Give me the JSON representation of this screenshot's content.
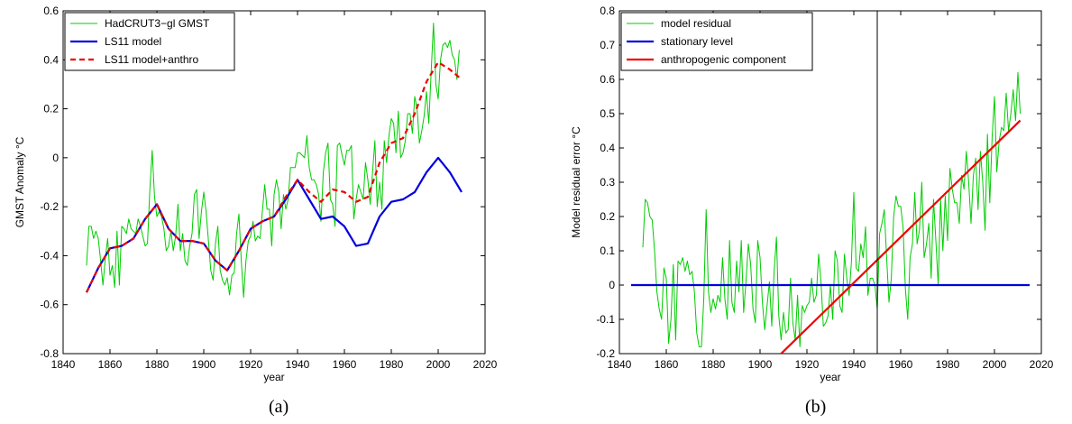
{
  "chart_data": [
    {
      "type": "line",
      "title": "",
      "xlabel": "year",
      "ylabel": "GMST Anomaly °C",
      "xlim": [
        1840,
        2020
      ],
      "ylim": [
        -0.8,
        0.6
      ],
      "xticks": [
        1840,
        1860,
        1880,
        1900,
        1920,
        1940,
        1960,
        1980,
        2000,
        2020
      ],
      "yticks": [
        -0.8,
        -0.6,
        -0.4,
        -0.2,
        0,
        0.2,
        0.4,
        0.6
      ],
      "grid": false,
      "legend_placement": "top-left",
      "series": [
        {
          "name": "HadCRUT3−gl GMST",
          "color": "#00cc00",
          "style": "solid",
          "x": [
            1850,
            1851,
            1852,
            1853,
            1854,
            1855,
            1856,
            1857,
            1858,
            1859,
            1860,
            1861,
            1862,
            1863,
            1864,
            1865,
            1866,
            1867,
            1868,
            1869,
            1870,
            1871,
            1872,
            1873,
            1874,
            1875,
            1876,
            1877,
            1878,
            1879,
            1880,
            1881,
            1882,
            1883,
            1884,
            1885,
            1886,
            1887,
            1888,
            1889,
            1890,
            1891,
            1892,
            1893,
            1894,
            1895,
            1896,
            1897,
            1898,
            1899,
            1900,
            1901,
            1902,
            1903,
            1904,
            1905,
            1906,
            1907,
            1908,
            1909,
            1910,
            1911,
            1912,
            1913,
            1914,
            1915,
            1916,
            1917,
            1918,
            1919,
            1920,
            1921,
            1922,
            1923,
            1924,
            1925,
            1926,
            1927,
            1928,
            1929,
            1930,
            1931,
            1932,
            1933,
            1934,
            1935,
            1936,
            1937,
            1938,
            1939,
            1940,
            1941,
            1942,
            1943,
            1944,
            1945,
            1946,
            1947,
            1948,
            1949,
            1950,
            1951,
            1952,
            1953,
            1954,
            1955,
            1956,
            1957,
            1958,
            1959,
            1960,
            1961,
            1962,
            1963,
            1964,
            1965,
            1966,
            1967,
            1968,
            1969,
            1970,
            1971,
            1972,
            1973,
            1974,
            1975,
            1976,
            1977,
            1978,
            1979,
            1980,
            1981,
            1982,
            1983,
            1984,
            1985,
            1986,
            1987,
            1988,
            1989,
            1990,
            1991,
            1992,
            1993,
            1994,
            1995,
            1996,
            1997,
            1998,
            1999,
            2000,
            2001,
            2002,
            2003,
            2004,
            2005,
            2006,
            2007,
            2008,
            2009
          ],
          "values": [
            -0.44,
            -0.28,
            -0.28,
            -0.33,
            -0.3,
            -0.33,
            -0.42,
            -0.52,
            -0.41,
            -0.33,
            -0.48,
            -0.44,
            -0.53,
            -0.3,
            -0.52,
            -0.28,
            -0.29,
            -0.31,
            -0.25,
            -0.29,
            -0.3,
            -0.31,
            -0.25,
            -0.28,
            -0.32,
            -0.36,
            -0.35,
            -0.13,
            0.03,
            -0.16,
            -0.24,
            -0.22,
            -0.24,
            -0.29,
            -0.38,
            -0.36,
            -0.3,
            -0.38,
            -0.32,
            -0.19,
            -0.38,
            -0.31,
            -0.42,
            -0.44,
            -0.36,
            -0.31,
            -0.15,
            -0.13,
            -0.33,
            -0.22,
            -0.14,
            -0.22,
            -0.34,
            -0.46,
            -0.5,
            -0.35,
            -0.28,
            -0.46,
            -0.5,
            -0.52,
            -0.49,
            -0.56,
            -0.48,
            -0.47,
            -0.31,
            -0.23,
            -0.42,
            -0.57,
            -0.42,
            -0.34,
            -0.32,
            -0.26,
            -0.34,
            -0.32,
            -0.33,
            -0.22,
            -0.11,
            -0.21,
            -0.21,
            -0.36,
            -0.15,
            -0.09,
            -0.14,
            -0.29,
            -0.15,
            -0.21,
            -0.17,
            -0.04,
            -0.04,
            -0.04,
            0.02,
            0.02,
            0.01,
            0.0,
            0.09,
            -0.04,
            -0.09,
            -0.09,
            -0.11,
            -0.15,
            -0.26,
            -0.06,
            0.02,
            0.06,
            -0.17,
            -0.19,
            -0.28,
            0.05,
            0.06,
            0.01,
            -0.03,
            0.03,
            0.03,
            0.05,
            -0.25,
            -0.17,
            -0.11,
            -0.14,
            -0.17,
            -0.02,
            -0.09,
            -0.19,
            -0.06,
            0.07,
            -0.2,
            -0.1,
            -0.21,
            0.07,
            -0.02,
            0.09,
            0.16,
            0.14,
            0.02,
            0.19,
            0.0,
            0.02,
            0.07,
            0.18,
            0.18,
            0.1,
            0.25,
            0.2,
            0.06,
            0.11,
            0.17,
            0.27,
            0.14,
            0.35,
            0.55,
            0.3,
            0.24,
            0.4,
            0.46,
            0.47,
            0.45,
            0.48,
            0.42,
            0.4,
            0.32,
            0.44
          ]
        },
        {
          "name": "LS11 model",
          "color": "#0000dd",
          "style": "solid",
          "x": [
            1850,
            1855,
            1860,
            1865,
            1870,
            1875,
            1880,
            1885,
            1890,
            1895,
            1900,
            1905,
            1910,
            1915,
            1920,
            1925,
            1930,
            1935,
            1940,
            1945,
            1950,
            1955,
            1960,
            1965,
            1970,
            1975,
            1980,
            1985,
            1990,
            1995,
            2000,
            2005,
            2010
          ],
          "values": [
            -0.55,
            -0.45,
            -0.37,
            -0.36,
            -0.33,
            -0.25,
            -0.19,
            -0.29,
            -0.34,
            -0.34,
            -0.35,
            -0.42,
            -0.46,
            -0.38,
            -0.29,
            -0.26,
            -0.24,
            -0.17,
            -0.09,
            -0.17,
            -0.25,
            -0.24,
            -0.28,
            -0.36,
            -0.35,
            -0.24,
            -0.18,
            -0.17,
            -0.14,
            -0.06,
            0.0,
            -0.06,
            -0.14
          ]
        },
        {
          "name": "LS11 model+anthro",
          "color": "#ee0000",
          "style": "dashed",
          "x": [
            1850,
            1855,
            1860,
            1865,
            1870,
            1875,
            1880,
            1885,
            1890,
            1895,
            1900,
            1905,
            1910,
            1915,
            1920,
            1925,
            1930,
            1935,
            1940,
            1945,
            1950,
            1955,
            1960,
            1965,
            1970,
            1975,
            1980,
            1985,
            1990,
            1995,
            2000,
            2005,
            2010
          ],
          "values": [
            -0.55,
            -0.45,
            -0.37,
            -0.36,
            -0.33,
            -0.25,
            -0.19,
            -0.29,
            -0.34,
            -0.34,
            -0.35,
            -0.42,
            -0.46,
            -0.38,
            -0.29,
            -0.26,
            -0.24,
            -0.16,
            -0.09,
            -0.14,
            -0.18,
            -0.13,
            -0.14,
            -0.18,
            -0.16,
            -0.02,
            0.06,
            0.08,
            0.18,
            0.31,
            0.39,
            0.36,
            0.32
          ]
        }
      ]
    },
    {
      "type": "line",
      "title": "",
      "xlabel": "year",
      "ylabel": "Model residual error °C",
      "xlim": [
        1840,
        2020
      ],
      "ylim": [
        -0.2,
        0.8
      ],
      "xticks": [
        1840,
        1860,
        1880,
        1900,
        1920,
        1940,
        1960,
        1980,
        2000,
        2020
      ],
      "yticks": [
        -0.2,
        -0.1,
        0,
        0.1,
        0.2,
        0.3,
        0.4,
        0.5,
        0.6,
        0.7,
        0.8
      ],
      "grid": false,
      "legend_placement": "top-left",
      "vline_x": 1950,
      "series": [
        {
          "name": "model residual",
          "color": "#00cc00",
          "style": "solid",
          "x": [
            1850,
            1851,
            1852,
            1853,
            1854,
            1855,
            1856,
            1857,
            1858,
            1859,
            1860,
            1861,
            1862,
            1863,
            1864,
            1865,
            1866,
            1867,
            1868,
            1869,
            1870,
            1871,
            1872,
            1873,
            1874,
            1875,
            1876,
            1877,
            1878,
            1879,
            1880,
            1881,
            1882,
            1883,
            1884,
            1885,
            1886,
            1887,
            1888,
            1889,
            1890,
            1891,
            1892,
            1893,
            1894,
            1895,
            1896,
            1897,
            1898,
            1899,
            1900,
            1901,
            1902,
            1903,
            1904,
            1905,
            1906,
            1907,
            1908,
            1909,
            1910,
            1911,
            1912,
            1913,
            1914,
            1915,
            1916,
            1917,
            1918,
            1919,
            1920,
            1921,
            1922,
            1923,
            1924,
            1925,
            1926,
            1927,
            1928,
            1929,
            1930,
            1931,
            1932,
            1933,
            1934,
            1935,
            1936,
            1937,
            1938,
            1939,
            1940,
            1941,
            1942,
            1943,
            1944,
            1945,
            1946,
            1947,
            1948,
            1949,
            1950,
            1951,
            1952,
            1953,
            1954,
            1955,
            1956,
            1957,
            1958,
            1959,
            1960,
            1961,
            1962,
            1963,
            1964,
            1965,
            1966,
            1967,
            1968,
            1969,
            1970,
            1971,
            1972,
            1973,
            1974,
            1975,
            1976,
            1977,
            1978,
            1979,
            1980,
            1981,
            1982,
            1983,
            1984,
            1985,
            1986,
            1987,
            1988,
            1989,
            1990,
            1991,
            1992,
            1993,
            1994,
            1995,
            1996,
            1997,
            1998,
            1999,
            2000,
            2001,
            2002,
            2003,
            2004,
            2005,
            2006,
            2007,
            2008,
            2009,
            2010,
            2011
          ],
          "values": [
            0.11,
            0.25,
            0.24,
            0.2,
            0.19,
            0.1,
            -0.02,
            -0.07,
            -0.1,
            0.05,
            0.02,
            -0.17,
            -0.1,
            0.06,
            -0.16,
            0.07,
            0.06,
            0.08,
            0.04,
            0.07,
            0.03,
            0.04,
            -0.02,
            -0.14,
            -0.18,
            -0.18,
            -0.04,
            0.22,
            -0.02,
            -0.08,
            -0.04,
            -0.07,
            -0.03,
            -0.05,
            0.08,
            -0.04,
            -0.1,
            0.13,
            -0.05,
            -0.08,
            0.07,
            -0.02,
            0.13,
            -0.08,
            0.01,
            0.12,
            0.06,
            -0.07,
            -0.11,
            0.13,
            0.08,
            -0.05,
            -0.13,
            -0.06,
            0.01,
            -0.12,
            0.04,
            0.14,
            -0.09,
            -0.16,
            -0.08,
            -0.14,
            -0.13,
            0.02,
            -0.11,
            -0.16,
            -0.03,
            -0.18,
            -0.06,
            -0.08,
            -0.06,
            -0.05,
            0.02,
            -0.05,
            -0.03,
            0.09,
            0.01,
            -0.12,
            -0.11,
            -0.09,
            0.0,
            -0.1,
            0.1,
            0.07,
            -0.06,
            -0.08,
            0.09,
            0.02,
            -0.03,
            0.07,
            0.27,
            0.05,
            0.04,
            0.12,
            0.08,
            0.17,
            -0.03,
            0.02,
            0.02,
            0.0,
            -0.07,
            0.15,
            0.18,
            0.22,
            0.08,
            -0.05,
            0.02,
            0.2,
            0.26,
            0.23,
            0.23,
            0.17,
            -0.01,
            -0.1,
            0.08,
            0.12,
            0.27,
            0.12,
            0.16,
            0.3,
            0.08,
            0.12,
            0.18,
            0.02,
            0.25,
            0.13,
            0.0,
            0.25,
            0.1,
            0.26,
            0.13,
            0.34,
            0.28,
            0.24,
            0.24,
            0.18,
            0.32,
            0.28,
            0.39,
            0.3,
            0.18,
            0.32,
            0.37,
            0.22,
            0.39,
            0.3,
            0.16,
            0.44,
            0.24,
            0.43,
            0.55,
            0.33,
            0.42,
            0.46,
            0.45,
            0.56,
            0.45,
            0.5,
            0.57,
            0.48,
            0.62,
            0.5
          ]
        },
        {
          "name": "stationary level",
          "color": "#0000dd",
          "style": "solid",
          "x": [
            1845,
            2015
          ],
          "values": [
            0,
            0
          ]
        },
        {
          "name": "anthropogenic component",
          "color": "#ee0000",
          "style": "solid",
          "x": [
            1909,
            2011
          ],
          "values": [
            -0.2,
            0.48
          ]
        }
      ]
    }
  ],
  "captions": [
    "(a)",
    "(b)"
  ]
}
